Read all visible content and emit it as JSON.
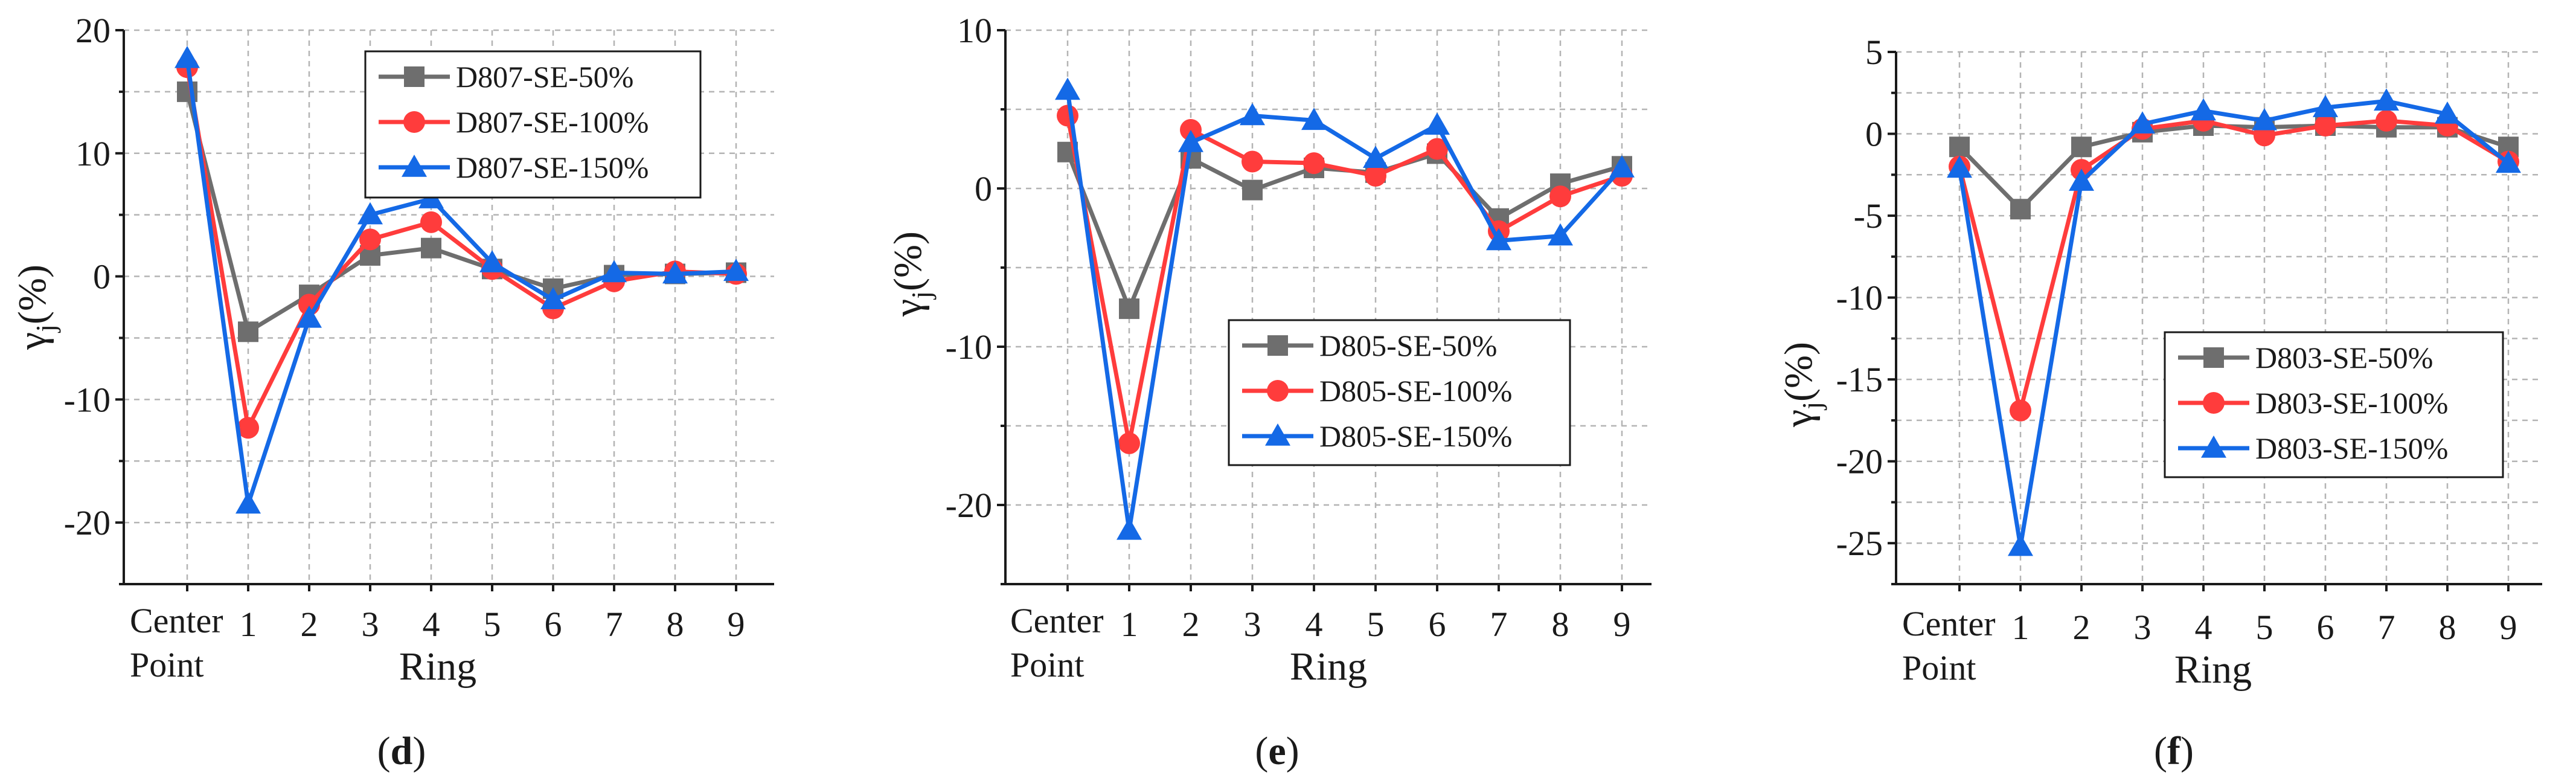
{
  "colors": {
    "s50": "#6e6e6e",
    "s100": "#ff3c3c",
    "s150": "#1469e6",
    "grid": "#b4b4b4",
    "axis": "#1a1a1a"
  },
  "chart_data": [
    {
      "type": "line",
      "panel_label": "d",
      "x_categories": [
        "Center Point",
        "1",
        "2",
        "3",
        "4",
        "5",
        "6",
        "7",
        "8",
        "9"
      ],
      "xlabel": "Ring",
      "ylabel": "γj(%)",
      "ylim": [
        -25,
        20
      ],
      "yticks": [
        -20,
        -10,
        0,
        10,
        20
      ],
      "ytick_labels": [
        "-20",
        "-10",
        "0",
        "10",
        "20"
      ],
      "grid": true,
      "legend_position": "top-right",
      "series": [
        {
          "name": "D807-SE-50%",
          "marker": "square",
          "color": "#6e6e6e",
          "values": [
            15,
            -4.5,
            -1.5,
            1.7,
            2.3,
            0.6,
            -1.0,
            0.1,
            0.2,
            0.3
          ]
        },
        {
          "name": "D807-SE-100%",
          "marker": "circle",
          "color": "#ff3c3c",
          "values": [
            17,
            -12.3,
            -2.3,
            3.0,
            4.4,
            0.6,
            -2.6,
            -0.4,
            0.4,
            0.2
          ]
        },
        {
          "name": "D807-SE-150%",
          "marker": "triangle",
          "color": "#1469e6",
          "values": [
            17.7,
            -18.5,
            -3.4,
            5.0,
            6.3,
            1.1,
            -1.9,
            0.3,
            0.2,
            0.4
          ]
        }
      ]
    },
    {
      "type": "line",
      "panel_label": "e",
      "x_categories": [
        "Center Point",
        "1",
        "2",
        "3",
        "4",
        "5",
        "6",
        "7",
        "8",
        "9"
      ],
      "xlabel": "Ring",
      "ylabel": "γj(%)",
      "ylim": [
        -25,
        10
      ],
      "yticks": [
        -20,
        -10,
        0,
        10
      ],
      "ytick_labels": [
        "-20",
        "-10",
        "0",
        "10"
      ],
      "grid": true,
      "legend_position": "center-right",
      "series": [
        {
          "name": "D805-SE-50%",
          "marker": "square",
          "color": "#6e6e6e",
          "values": [
            2.3,
            -7.6,
            1.9,
            -0.1,
            1.3,
            1.0,
            2.2,
            -1.9,
            0.3,
            1.4
          ]
        },
        {
          "name": "D805-SE-100%",
          "marker": "circle",
          "color": "#ff3c3c",
          "values": [
            4.6,
            -16.1,
            3.7,
            1.7,
            1.6,
            0.8,
            2.5,
            -2.7,
            -0.5,
            0.8
          ]
        },
        {
          "name": "D805-SE-150%",
          "marker": "triangle",
          "color": "#1469e6",
          "values": [
            6.2,
            -21.6,
            2.9,
            4.6,
            4.3,
            1.9,
            4.0,
            -3.3,
            -3.0,
            1.3
          ]
        }
      ]
    },
    {
      "type": "line",
      "panel_label": "f",
      "x_categories": [
        "Center Point",
        "1",
        "2",
        "3",
        "4",
        "5",
        "6",
        "7",
        "8",
        "9"
      ],
      "xlabel": "Ring",
      "ylabel": "γj(%)",
      "ylim": [
        -27.5,
        5
      ],
      "yticks": [
        -25,
        -20,
        -15,
        -10,
        -5,
        0,
        5
      ],
      "ytick_labels": [
        "-25",
        "-20",
        "-15",
        "-10",
        "-5",
        "0",
        "5"
      ],
      "grid": true,
      "legend_position": "center-right",
      "series": [
        {
          "name": "D803-SE-50%",
          "marker": "square",
          "color": "#6e6e6e",
          "values": [
            -0.8,
            -4.6,
            -0.8,
            0.1,
            0.5,
            0.4,
            0.5,
            0.4,
            0.4,
            -0.8
          ]
        },
        {
          "name": "D803-SE-100%",
          "marker": "circle",
          "color": "#ff3c3c",
          "values": [
            -2.0,
            -16.9,
            -2.2,
            0.3,
            0.8,
            -0.1,
            0.5,
            0.8,
            0.5,
            -1.7
          ]
        },
        {
          "name": "D803-SE-150%",
          "marker": "triangle",
          "color": "#1469e6",
          "values": [
            -2.1,
            -25.2,
            -2.9,
            0.6,
            1.4,
            0.8,
            1.6,
            2.0,
            1.2,
            -1.8
          ]
        }
      ]
    }
  ]
}
